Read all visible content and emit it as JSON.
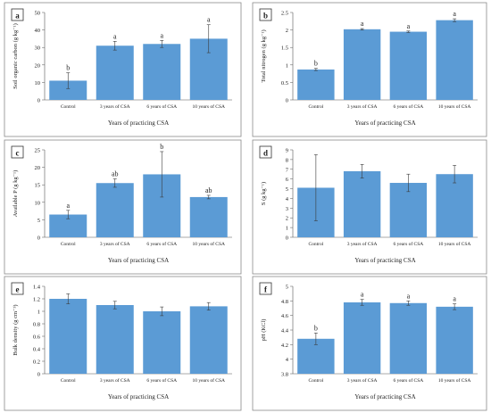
{
  "chart_data": [
    {
      "type": "bar",
      "panel_letter": "a",
      "categories": [
        "Control",
        "3 years of CSA",
        "6 years of CSA",
        "10 years of CSA"
      ],
      "values": [
        11,
        31,
        32,
        35
      ],
      "errors": [
        4.5,
        2.5,
        2,
        8
      ],
      "annotations": [
        "b",
        "a",
        "a",
        "a"
      ],
      "ylabel": "Soil organic carbon (g kg⁻¹)",
      "xlabel": "Years of practicing CSA",
      "ylim": [
        0,
        50
      ],
      "yticks": [
        "0",
        "10",
        "20",
        "30",
        "40",
        "50"
      ],
      "color": "#5b9bd5"
    },
    {
      "type": "bar",
      "panel_letter": "b",
      "categories": [
        "Control",
        "3 years of CSA",
        "6 years of CSA",
        "10 years of CSA"
      ],
      "values": [
        0.87,
        2.02,
        1.95,
        2.28
      ],
      "errors": [
        0.03,
        0.02,
        0.02,
        0.04
      ],
      "annotations": [
        "b",
        "a",
        "a",
        "a"
      ],
      "ylabel": "Total nitrogen (g kg⁻¹)",
      "xlabel": "Years of practicing CSA",
      "ylim": [
        0,
        2.5
      ],
      "yticks": [
        "0",
        "0.5",
        "1",
        "1.5",
        "2",
        "2.5"
      ],
      "color": "#5b9bd5"
    },
    {
      "type": "bar",
      "panel_letter": "c",
      "categories": [
        "Control",
        "3 years of CSA",
        "6 years of CSA",
        "10 years of CSA"
      ],
      "values": [
        6.5,
        15.5,
        18,
        11.5
      ],
      "errors": [
        1.2,
        1.2,
        6.5,
        0.5
      ],
      "annotations": [
        "a",
        "ab",
        "b",
        "ab"
      ],
      "ylabel": "Available P (g kg⁻¹)",
      "xlabel": "Years of practicing CSA",
      "ylim": [
        0,
        25
      ],
      "yticks": [
        "0",
        "5",
        "10",
        "15",
        "20",
        "25"
      ],
      "color": "#5b9bd5"
    },
    {
      "type": "bar",
      "panel_letter": "d",
      "categories": [
        "Control",
        "3 years of CSA",
        "6 years of CSA",
        "10 years of CSA"
      ],
      "values": [
        5.1,
        6.8,
        5.6,
        6.5
      ],
      "errors": [
        3.4,
        0.7,
        0.9,
        0.9
      ],
      "annotations": [
        "",
        "",
        "",
        ""
      ],
      "ylabel": "S (g kg⁻¹)",
      "xlabel": "Years of practicing CSA",
      "ylim": [
        0,
        9
      ],
      "yticks": [
        "0",
        "1",
        "2",
        "3",
        "4",
        "5",
        "6",
        "7",
        "8",
        "9"
      ],
      "color": "#5b9bd5"
    },
    {
      "type": "bar",
      "panel_letter": "e",
      "categories": [
        "Control",
        "3 years of CSA",
        "6 years of CSA",
        "10 years of CSA"
      ],
      "values": [
        1.2,
        1.1,
        1.0,
        1.08
      ],
      "errors": [
        0.08,
        0.06,
        0.07,
        0.06
      ],
      "annotations": [
        "",
        "",
        "",
        ""
      ],
      "ylabel": "Bulk density (g cm⁻³)",
      "xlabel": "Years of practicing CSA",
      "ylim": [
        0,
        1.4
      ],
      "yticks": [
        "0",
        "0.2",
        "0.4",
        "0.6",
        "0.8",
        "1",
        "1.2",
        "1.4"
      ],
      "color": "#5b9bd5"
    },
    {
      "type": "bar",
      "panel_letter": "f",
      "categories": [
        "Control",
        "3 years of CSA",
        "6 years of CSA",
        "10 years of CSA"
      ],
      "values": [
        4.28,
        4.78,
        4.77,
        4.72
      ],
      "errors": [
        0.08,
        0.04,
        0.03,
        0.04
      ],
      "annotations": [
        "b",
        "a",
        "a",
        "a"
      ],
      "ylabel": "pH (KCl)",
      "xlabel": "Years of practicing CSA",
      "ylim": [
        3.8,
        5
      ],
      "yticks": [
        "3.8",
        "4",
        "4.2",
        "4.4",
        "4.6",
        "4.8",
        "5"
      ],
      "color": "#5b9bd5"
    }
  ]
}
